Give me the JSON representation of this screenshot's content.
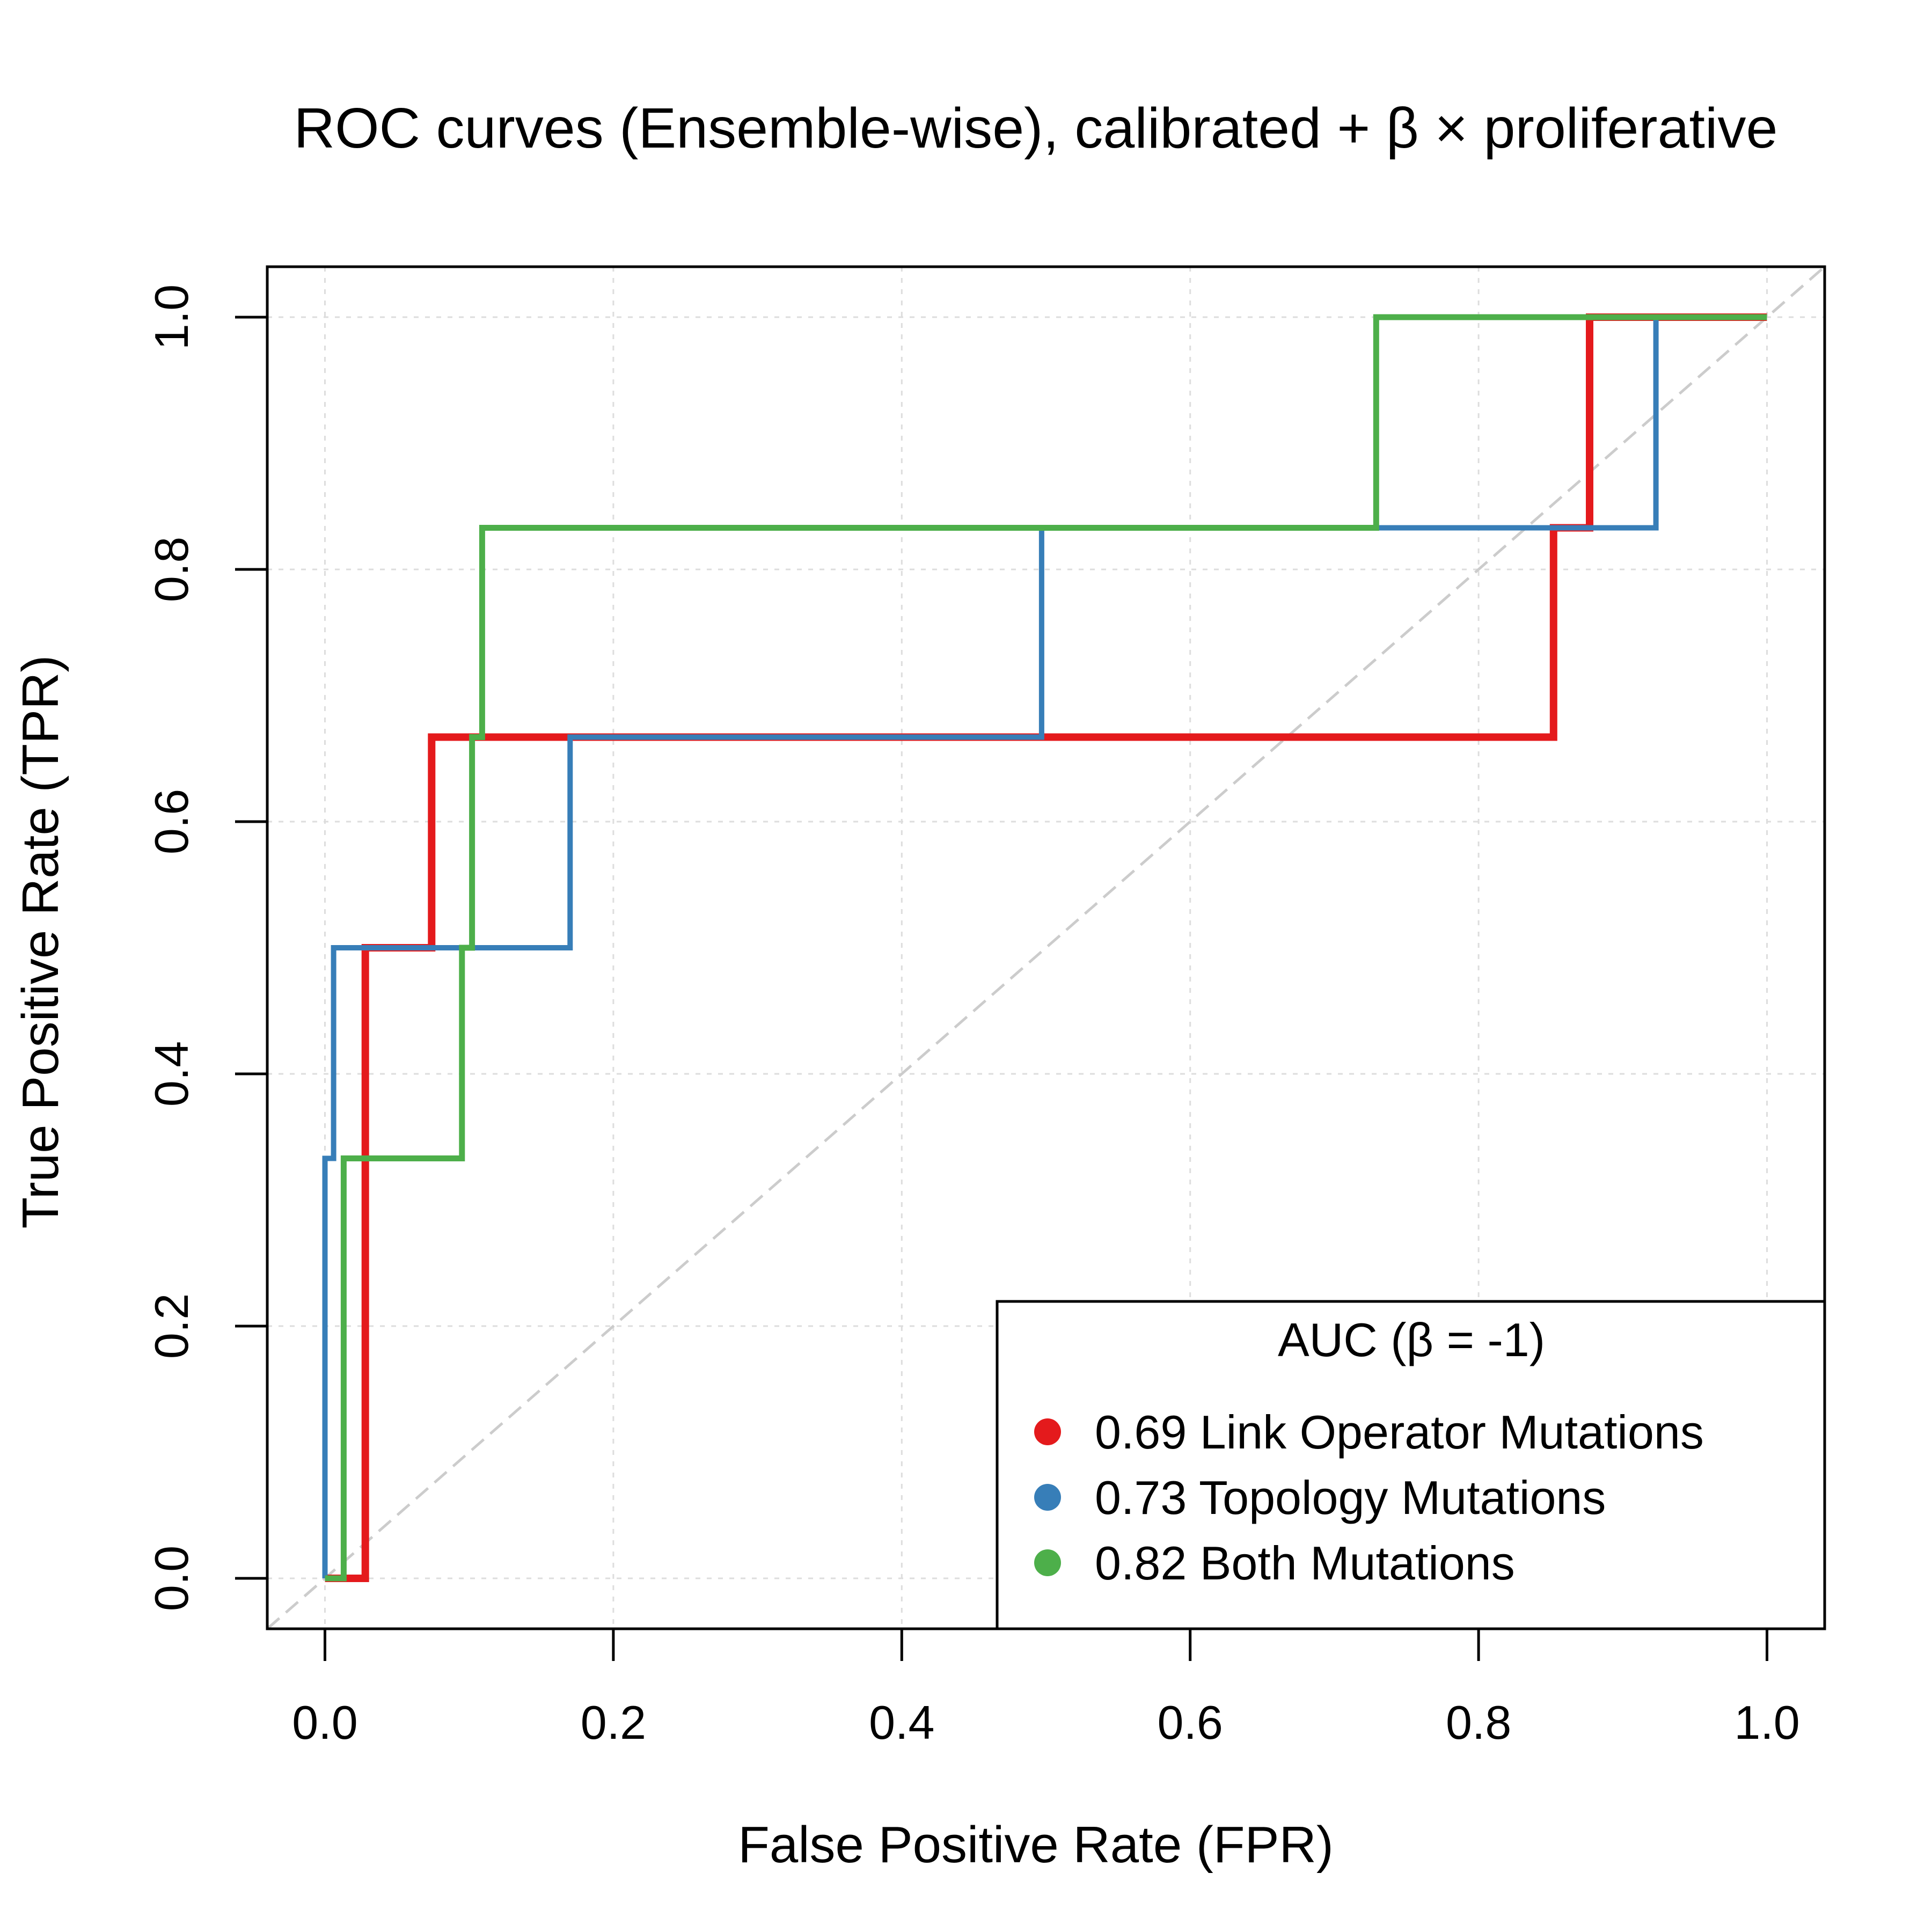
{
  "chart_data": {
    "type": "line",
    "title": "ROC curves (Ensemble-wise), calibrated + β × proliferative",
    "xlabel": "False Positive Rate (FPR)",
    "ylabel": "True Positive Rate (TPR)",
    "xlim": [
      -0.04,
      1.04
    ],
    "ylim": [
      -0.04,
      1.04
    ],
    "xticks": [
      0.0,
      0.2,
      0.4,
      0.6,
      0.8,
      1.0
    ],
    "yticks": [
      0.0,
      0.2,
      0.4,
      0.6,
      0.8,
      1.0
    ],
    "xtick_labels": [
      "0.0",
      "0.2",
      "0.4",
      "0.6",
      "0.8",
      "1.0"
    ],
    "ytick_labels": [
      "0.0",
      "0.2",
      "0.4",
      "0.6",
      "0.8",
      "1.0"
    ],
    "grid": true,
    "diagonal_reference": true,
    "legend": {
      "title": "AUC (β = -1)",
      "position": "bottom-right"
    },
    "series": [
      {
        "name": "0.69 Link Operator Mutations",
        "color": "#E41A1C",
        "x": [
          0.0,
          0.028,
          0.028,
          0.074,
          0.074,
          0.852,
          0.852,
          0.877,
          0.877,
          1.0
        ],
        "y": [
          0.0,
          0.0,
          0.5,
          0.5,
          0.667,
          0.667,
          0.833,
          0.833,
          1.0,
          1.0
        ]
      },
      {
        "name": "0.73 Topology Mutations",
        "color": "#377EB8",
        "x": [
          0.0,
          0.0,
          0.006,
          0.006,
          0.17,
          0.17,
          0.497,
          0.497,
          0.923,
          0.923,
          1.0
        ],
        "y": [
          0.0,
          0.333,
          0.333,
          0.5,
          0.5,
          0.667,
          0.667,
          0.833,
          0.833,
          1.0,
          1.0
        ]
      },
      {
        "name": "0.82 Both Mutations",
        "color": "#4DAF4A",
        "x": [
          0.0,
          0.013,
          0.013,
          0.095,
          0.095,
          0.102,
          0.102,
          0.109,
          0.109,
          0.729,
          0.729,
          1.0
        ],
        "y": [
          0.0,
          0.0,
          0.333,
          0.333,
          0.5,
          0.5,
          0.667,
          0.667,
          0.833,
          0.833,
          1.0,
          1.0
        ]
      }
    ]
  }
}
